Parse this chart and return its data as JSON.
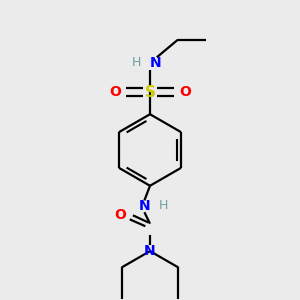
{
  "bg_color": "#ebebeb",
  "bond_color": "#000000",
  "N_color": "#0000ff",
  "O_color": "#ff0000",
  "S_color": "#cccc00",
  "H_color": "#6f9f9f",
  "line_width": 1.6,
  "figsize": [
    3.0,
    3.0
  ],
  "dpi": 100,
  "xlim": [
    0.15,
    0.85
  ],
  "ylim": [
    0.02,
    0.98
  ]
}
